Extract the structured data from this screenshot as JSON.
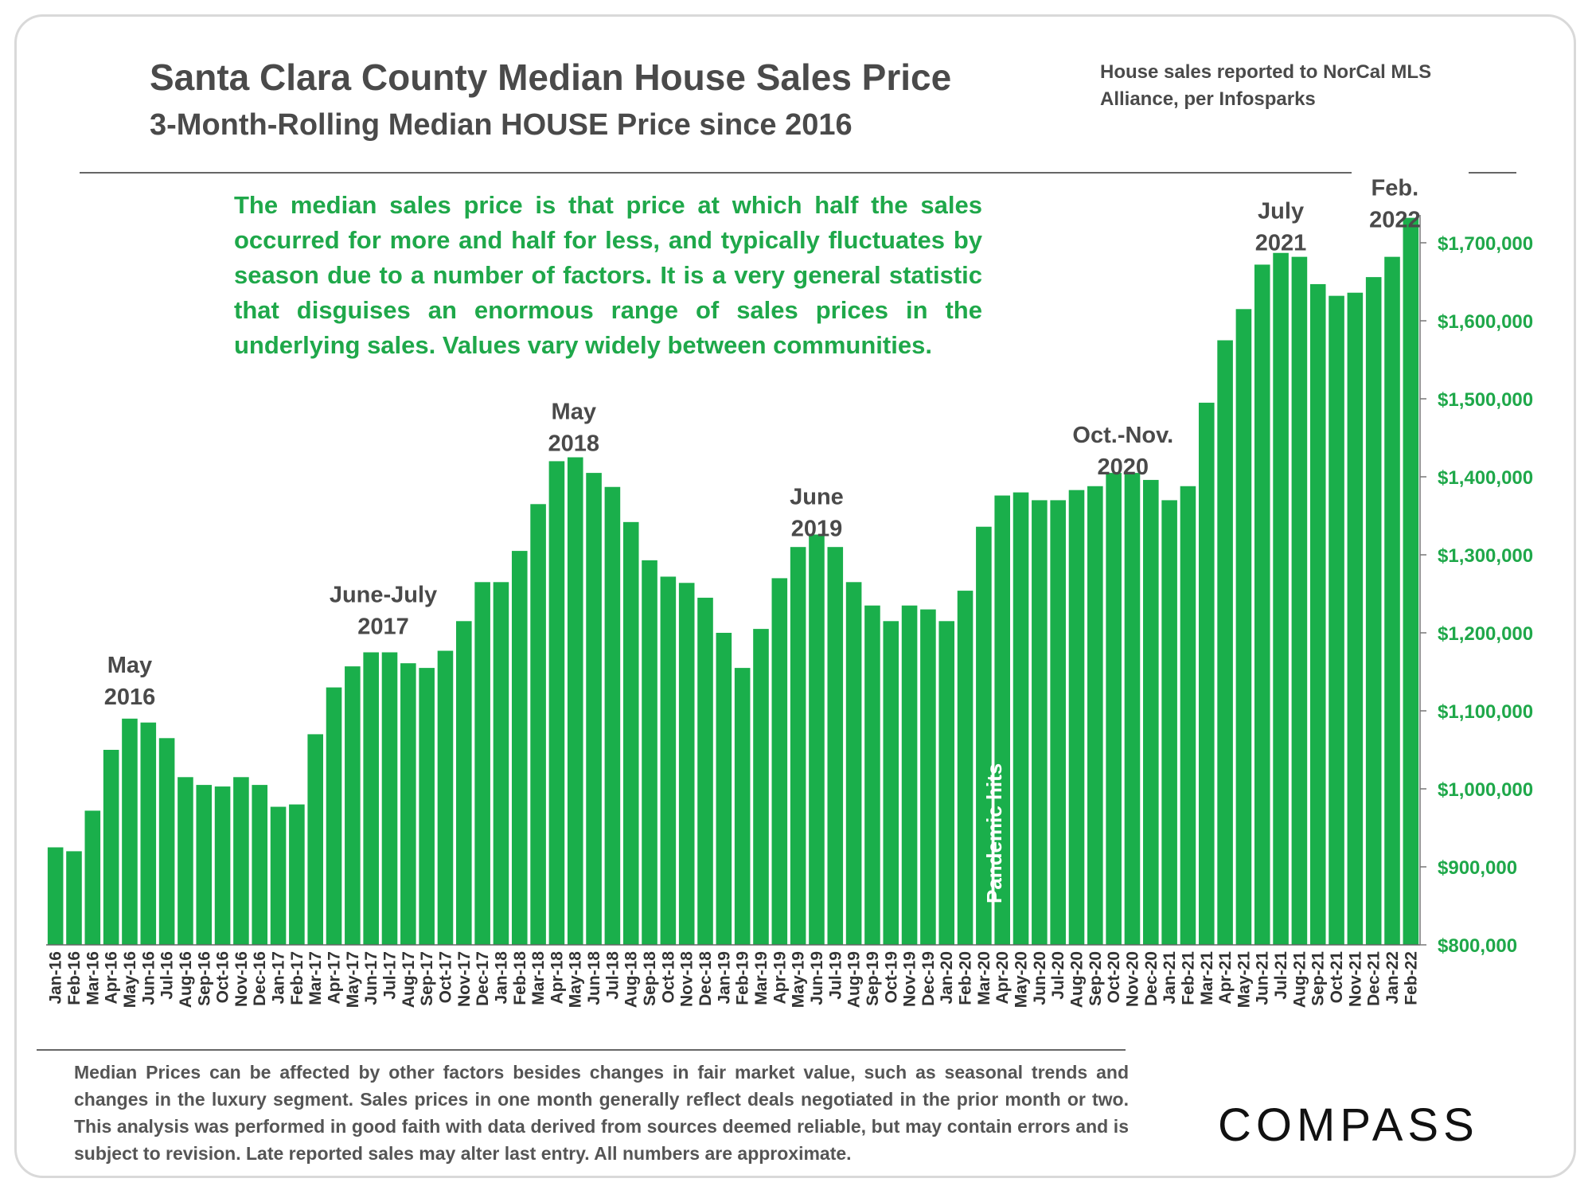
{
  "header": {
    "title": "Santa Clara County Median House Sales Price",
    "subtitle": "3-Month-Rolling Median HOUSE Price since 2016",
    "source": "House sales reported to NorCal MLS Alliance, per Infosparks"
  },
  "note": "The median sales price is that price at which half the sales occurred for more and half for less, and typically fluctuates by season due to a number of factors. It is a very general statistic that disguises an enormous range of sales prices in the underlying sales. Values vary widely between communities.",
  "footer": {
    "disclaimer": "Median Prices can be affected by other factors besides changes in fair market value, such as seasonal trends and changes in the luxury segment. Sales prices in one month generally reflect deals negotiated in the prior month or two. This analysis was performed in good faith with data derived from sources deemed reliable, but may contain errors and is subject to revision. Late reported sales may alter last entry. All numbers are approximate.",
    "logo": "COMPASS"
  },
  "chart_data": {
    "type": "bar",
    "title": "Santa Clara County Median House Sales Price",
    "subtitle": "3-Month-Rolling Median HOUSE Price since 2016",
    "xlabel": "",
    "ylabel": "",
    "bar_color": "#1aaf4b",
    "ylim": [
      800000,
      1740000
    ],
    "y_axis_side": "right",
    "y_ticks": [
      800000,
      900000,
      1000000,
      1100000,
      1200000,
      1300000,
      1400000,
      1500000,
      1600000,
      1700000
    ],
    "y_tick_labels": [
      "$800,000",
      "$900,000",
      "$1,000,000",
      "$1,100,000",
      "$1,200,000",
      "$1,300,000",
      "$1,400,000",
      "$1,500,000",
      "$1,600,000",
      "$1,700,000"
    ],
    "grid": false,
    "categories": [
      "Jan-16",
      "Feb-16",
      "Mar-16",
      "Apr-16",
      "May-16",
      "Jun-16",
      "Jul-16",
      "Aug-16",
      "Sep-16",
      "Oct-16",
      "Nov-16",
      "Dec-16",
      "Jan-17",
      "Feb-17",
      "Mar-17",
      "Apr-17",
      "May-17",
      "Jun-17",
      "Jul-17",
      "Aug-17",
      "Sep-17",
      "Oct-17",
      "Nov-17",
      "Dec-17",
      "Jan-18",
      "Feb-18",
      "Mar-18",
      "Apr-18",
      "May-18",
      "Jun-18",
      "Jul-18",
      "Aug-18",
      "Sep-18",
      "Oct-18",
      "Nov-18",
      "Dec-18",
      "Jan-19",
      "Feb-19",
      "Mar-19",
      "Apr-19",
      "May-19",
      "Jun-19",
      "Jul-19",
      "Aug-19",
      "Sep-19",
      "Oct-19",
      "Nov-19",
      "Dec-19",
      "Jan-20",
      "Feb-20",
      "Mar-20",
      "Apr-20",
      "May-20",
      "Jun-20",
      "Jul-20",
      "Aug-20",
      "Sep-20",
      "Oct-20",
      "Nov-20",
      "Dec-20",
      "Jan-21",
      "Feb-21",
      "Mar-21",
      "Apr-21",
      "May-21",
      "Jun-21",
      "Jul-21",
      "Aug-21",
      "Sep-21",
      "Oct-21",
      "Nov-21",
      "Dec-21",
      "Jan-22",
      "Feb-22"
    ],
    "values": [
      925000,
      920000,
      972000,
      1050000,
      1090000,
      1085000,
      1065000,
      1015000,
      1005000,
      1003000,
      1015000,
      1005000,
      977000,
      980000,
      1070000,
      1130000,
      1157000,
      1175000,
      1175000,
      1161000,
      1155000,
      1177000,
      1215000,
      1265000,
      1265000,
      1305000,
      1365000,
      1420000,
      1425000,
      1405000,
      1387000,
      1342000,
      1293000,
      1272000,
      1264000,
      1245000,
      1200000,
      1155000,
      1205000,
      1270000,
      1310000,
      1326000,
      1310000,
      1265000,
      1235000,
      1215000,
      1235000,
      1230000,
      1215000,
      1254000,
      1336000,
      1376000,
      1380000,
      1370000,
      1370000,
      1383000,
      1388000,
      1405000,
      1405000,
      1396000,
      1370000,
      1388000,
      1495000,
      1575000,
      1615000,
      1672000,
      1687000,
      1682000,
      1647000,
      1632000,
      1636000,
      1656000,
      1682000,
      1732000
    ],
    "annotations": [
      {
        "text": "May 2016",
        "lines": [
          "May",
          "2016"
        ],
        "category": "May-16"
      },
      {
        "text": "June-July 2017",
        "lines": [
          "June-July",
          "2017"
        ],
        "category": "Jul-17"
      },
      {
        "text": "May 2018",
        "lines": [
          "May",
          "2018"
        ],
        "category": "May-18"
      },
      {
        "text": "June 2019",
        "lines": [
          "June",
          "2019"
        ],
        "category": "Jun-19"
      },
      {
        "text": "Oct.-Nov. 2020",
        "lines": [
          "Oct.-Nov.",
          "2020"
        ],
        "category": "Oct-20"
      },
      {
        "text": "July 2021",
        "lines": [
          "July",
          "2021"
        ],
        "category": "Jul-21"
      },
      {
        "text": "Feb. 2022",
        "lines": [
          "Feb.",
          "2022"
        ],
        "category": "Feb-22"
      }
    ],
    "marker": {
      "text": "Pandemic hits",
      "category": "Mar-20"
    }
  }
}
